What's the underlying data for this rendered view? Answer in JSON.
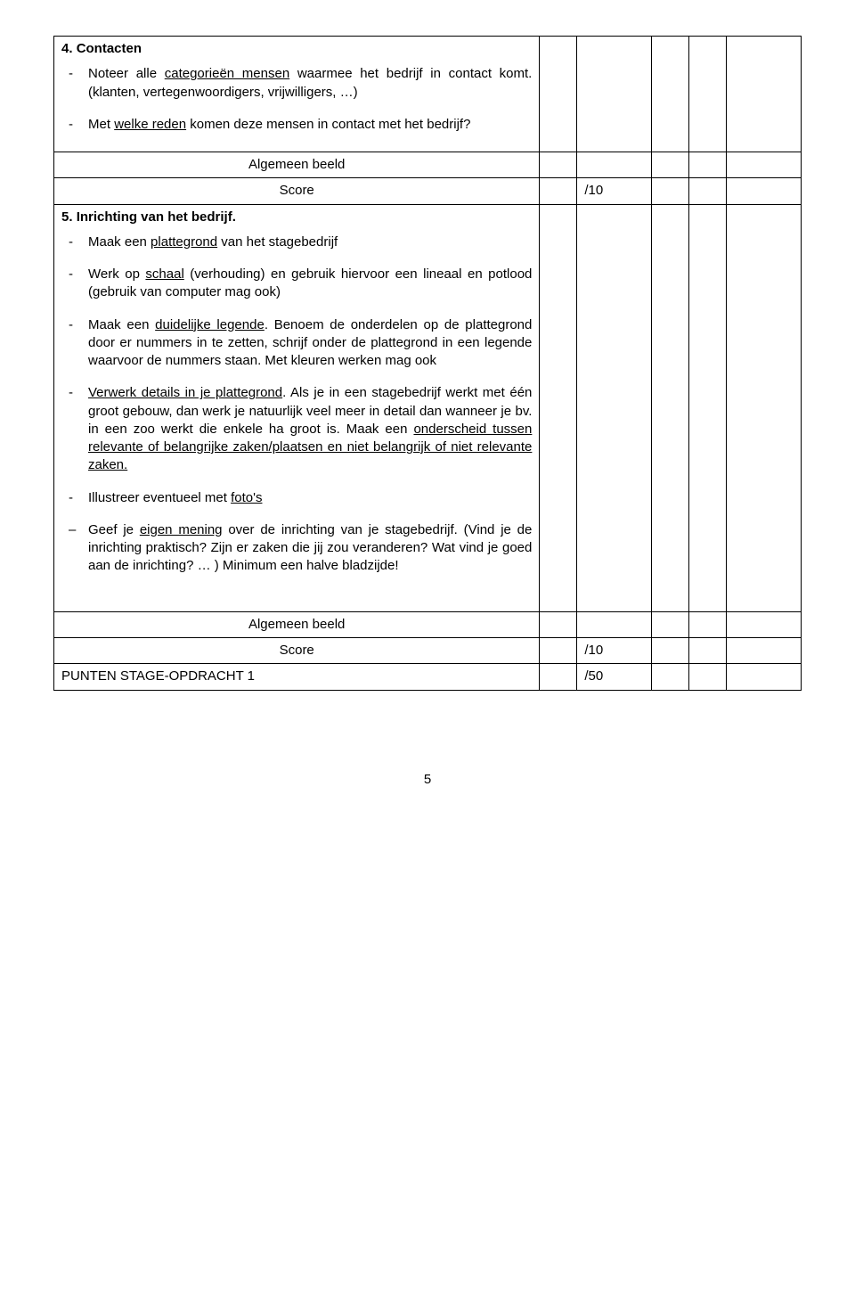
{
  "section4": {
    "number": "4.",
    "title": "Contacten",
    "item1_pre": "Noteer alle ",
    "item1_u": "categorieën mensen",
    "item1_post": " waarmee het bedrijf in contact komt. (klanten, vertegenwoordigers, vrijwilligers, …)",
    "item2_pre": "Met ",
    "item2_u": "welke reden",
    "item2_post": " komen deze mensen in contact met het bedrijf?"
  },
  "summary4": {
    "algemeen": "Algemeen beeld",
    "score_label": "Score",
    "score_value": "/10"
  },
  "section5": {
    "number": "5.",
    "title": "Inrichting van het bedrijf.",
    "item1_pre": "Maak een ",
    "item1_u": "plattegrond",
    "item1_post": " van het stagebedrijf",
    "item2_pre": "Werk op ",
    "item2_u": "schaal",
    "item2_post": " (verhouding) en gebruik hiervoor een lineaal en potlood (gebruik van computer mag ook)",
    "item3_pre": "Maak een ",
    "item3_u": "duidelijke legende",
    "item3_post": ". Benoem de onderdelen op de plattegrond door er nummers in te zetten, schrijf onder de plattegrond in een legende waarvoor de nummers staan. Met kleuren werken mag ook",
    "item4_u1": "Verwerk details in je plattegrond",
    "item4_mid": ". Als je in een stagebedrijf werkt met één groot gebouw, dan werk je natuurlijk veel meer in detail dan wanneer je bv. in een zoo werkt die enkele ha groot is. Maak een ",
    "item4_u2": "onderscheid tussen relevante of belangrijke zaken/plaatsen en niet belangrijk of niet relevante zaken.",
    "item5_pre": "Illustreer eventueel met ",
    "item5_u": "foto's",
    "item6_pre": "Geef je ",
    "item6_u": "eigen mening",
    "item6_post": " over de inrichting van je stagebedrijf. (Vind je de inrichting praktisch? Zijn er zaken die jij zou veranderen? Wat vind je goed aan de inrichting? … ) Minimum een halve bladzijde!"
  },
  "summary5": {
    "algemeen": "Algemeen beeld",
    "score_label": "Score",
    "score_value": "/10"
  },
  "total": {
    "label": "PUNTEN STAGE-OPDRACHT 1",
    "value": "/50"
  },
  "page_number": "5",
  "colors": {
    "text": "#000000",
    "background": "#ffffff",
    "border": "#000000"
  },
  "fonts": {
    "family": "Verdana",
    "body_size_pt": 11,
    "title_weight": "bold"
  },
  "layout": {
    "content_col_pct": 65,
    "score_cols_pct": [
      5,
      10,
      5,
      5,
      10
    ]
  }
}
